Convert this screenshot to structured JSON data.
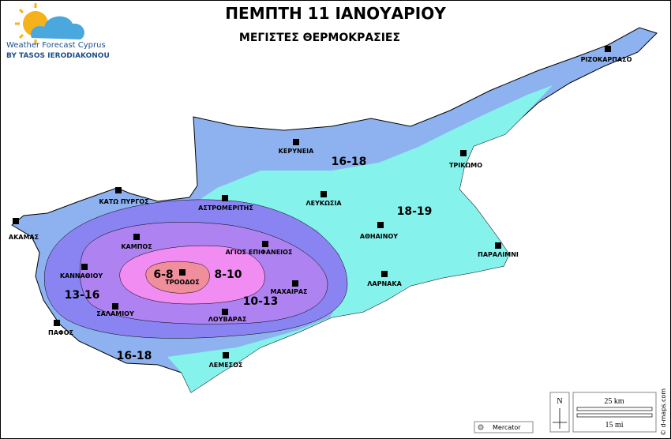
{
  "header": {
    "title": "ΠΕΜΠΤΗ 11 ΙΑΝΟΥΑΡΙΟΥ",
    "subtitle": "ΜΕΓΙΣΤΕΣ ΘΕΡΜΟΚΡΑΣΙΕΣ"
  },
  "logo": {
    "name": "Weather Forecast Cyprus",
    "byline": "BY TASOS IERODIAKONOU"
  },
  "zones": [
    "16-18",
    "18-19",
    "13-16",
    "10-13",
    "8-10",
    "6-8",
    "16-18"
  ],
  "cities": [
    "ΡΙΖΟΚΑΡΠΑΣΟ",
    "ΚΕΡΥΝΕΙΑ",
    "ΤΡΙΚΩΜΟ",
    "ΚΑΤΩ ΠΥΡΓΟΣ",
    "ΑΣΤΡΟΜΕΡΙΤΗΣ",
    "ΛΕΥΚΩΣΙΑ",
    "ΑΚΑΜΑΣ",
    "ΚΑΜΠΟΣ",
    "ΑΘΗΑΙΝΟΥ",
    "ΑΓΙΟΣ ΕΠΙΦΑΝΕΙΟΣ",
    "ΠΑΡΑΛΙΜΝΙ",
    "ΚΑΝΝΑΘΙΟΥ",
    "ΤΡΟΟΔΟΣ",
    "ΛΑΡΝΑΚΑ",
    "ΜΑΧΑΙΡΑΣ",
    "ΣΑΛΑΜΙΟΥ",
    "ΛΟΥΒΑΡΑΣ",
    "ΠΑΦΟΣ",
    "ΛΕΜΕΣΟΣ"
  ],
  "legend": {
    "north": "N",
    "km": "25 km",
    "mi": "15 mi",
    "projection": "Mercator",
    "credit": "© d-maps.com"
  }
}
